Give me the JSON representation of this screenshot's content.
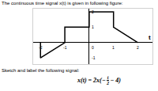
{
  "header": "The continuous time signal x(t) is given in following figure:",
  "chart_data": {
    "type": "line",
    "xlabel": "t",
    "x": [
      -2,
      -2,
      -1,
      -1,
      0,
      0,
      1,
      1,
      2
    ],
    "values": [
      0,
      -1,
      0,
      1,
      1,
      2,
      2,
      1,
      0
    ],
    "color": "#000000",
    "xlim": [
      -2.3,
      2.6
    ],
    "ylim": [
      -1.4,
      2.2
    ],
    "xticks": [
      -2,
      -1,
      0,
      1,
      2
    ],
    "yticks": [
      -1,
      1,
      2
    ],
    "grid": false
  },
  "instruction": "Sketch and label the following signal:",
  "formula": [
    "x(t) = 2x(−",
    {
      "num": "t",
      "den": "2"
    },
    " − 4)"
  ]
}
